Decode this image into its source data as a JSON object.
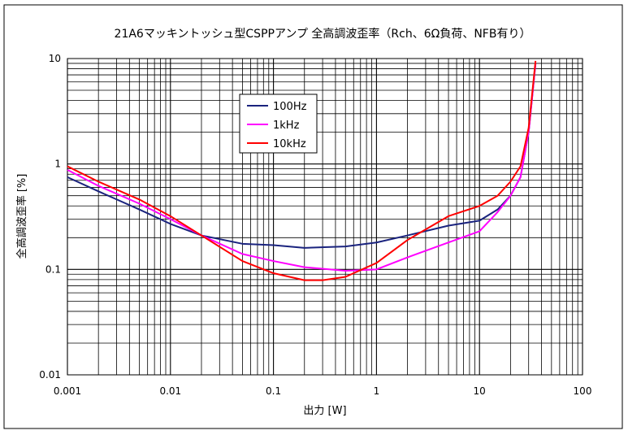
{
  "chart_data": {
    "type": "line",
    "title": "21A6マッキントッシュ型CSPPアンプ 全高調波歪率（Rch、6Ω負荷、NFB有り）",
    "xlabel": "出力 [W]",
    "ylabel": "全高調波歪率 [%]",
    "x_scale": "log",
    "y_scale": "log",
    "xlim": [
      0.001,
      100
    ],
    "ylim": [
      0.01,
      10
    ],
    "x_ticks": [
      0.001,
      0.01,
      0.1,
      1,
      10,
      100
    ],
    "x_tick_labels": [
      "0.001",
      "0.01",
      "0.1",
      "1",
      "10",
      "100"
    ],
    "y_ticks": [
      0.01,
      0.1,
      1,
      10
    ],
    "y_tick_labels": [
      "0.01",
      "0.1",
      "1",
      "10"
    ],
    "grid": "on",
    "legend_placement": "upper-left-inside",
    "series": [
      {
        "name": "100Hz",
        "color": "#1a237e",
        "x": [
          0.001,
          0.002,
          0.005,
          0.01,
          0.02,
          0.05,
          0.1,
          0.2,
          0.5,
          1,
          2,
          5,
          10,
          15,
          20,
          25,
          30,
          35
        ],
        "y": [
          0.75,
          0.55,
          0.37,
          0.27,
          0.21,
          0.175,
          0.17,
          0.16,
          0.165,
          0.18,
          0.21,
          0.26,
          0.29,
          0.37,
          0.5,
          0.75,
          2.0,
          9.0
        ]
      },
      {
        "name": "1kHz",
        "color": "#ff00ff",
        "x": [
          0.001,
          0.002,
          0.005,
          0.01,
          0.02,
          0.05,
          0.1,
          0.2,
          0.5,
          1,
          2,
          5,
          10,
          15,
          20,
          25,
          30,
          35
        ],
        "y": [
          0.88,
          0.62,
          0.42,
          0.3,
          0.21,
          0.14,
          0.12,
          0.105,
          0.097,
          0.1,
          0.13,
          0.18,
          0.23,
          0.35,
          0.5,
          0.75,
          2.0,
          9.0
        ]
      },
      {
        "name": "10kHz",
        "color": "#ff0000",
        "x": [
          0.001,
          0.002,
          0.005,
          0.01,
          0.02,
          0.05,
          0.1,
          0.2,
          0.3,
          0.5,
          1,
          2,
          5,
          10,
          15,
          20,
          25,
          30,
          35
        ],
        "y": [
          0.95,
          0.68,
          0.46,
          0.32,
          0.21,
          0.12,
          0.092,
          0.079,
          0.079,
          0.085,
          0.115,
          0.19,
          0.32,
          0.4,
          0.5,
          0.68,
          0.95,
          2.2,
          9.5
        ]
      }
    ]
  }
}
